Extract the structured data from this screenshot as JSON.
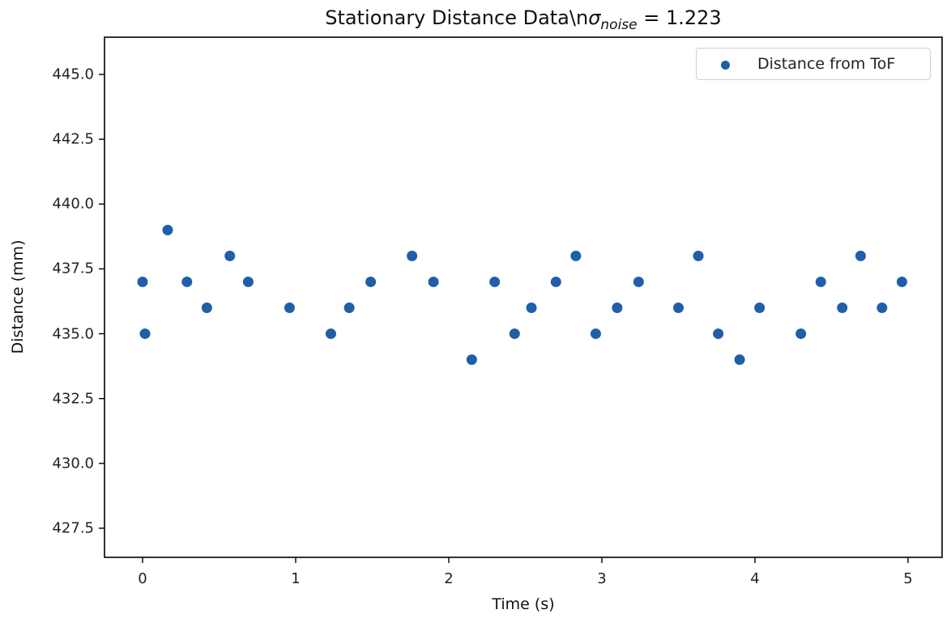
{
  "chart_data": {
    "type": "scatter",
    "title": "Stationary Distance Data\\nσ_noise = 1.223",
    "title_parts": {
      "main": "Stationary Distance Data\\n",
      "symbol": "σ",
      "subscript": "noise",
      "suffix": " = 1.223"
    },
    "xlabel": "Time (s)",
    "ylabel": "Distance (mm)",
    "xlim": [
      -0.25,
      5.22
    ],
    "ylim": [
      426.3,
      446.4
    ],
    "xticks": [
      0,
      1,
      2,
      3,
      4,
      5
    ],
    "xtick_labels": [
      "0",
      "1",
      "2",
      "3",
      "4",
      "5"
    ],
    "yticks": [
      427.5,
      430.0,
      432.5,
      435.0,
      437.5,
      440.0,
      442.5,
      445.0
    ],
    "ytick_labels": [
      "427.5",
      "430.0",
      "432.5",
      "435.0",
      "437.5",
      "440.0",
      "442.5",
      "445.0"
    ],
    "grid": false,
    "legend_position": "upper right",
    "series": [
      {
        "name": "Distance from ToF",
        "color": "#1f5fa8",
        "x": [
          0.0,
          0.016,
          0.164,
          0.29,
          0.42,
          0.57,
          0.69,
          0.96,
          1.23,
          1.35,
          1.49,
          1.76,
          1.9,
          2.15,
          2.3,
          2.43,
          2.54,
          2.7,
          2.83,
          2.96,
          3.1,
          3.24,
          3.5,
          3.63,
          3.76,
          3.9,
          4.03,
          4.3,
          4.43,
          4.57,
          4.69,
          4.83,
          4.96
        ],
        "y": [
          437,
          435,
          439,
          437,
          436,
          438,
          437,
          436,
          435,
          436,
          437,
          438,
          437,
          434,
          437,
          435,
          436,
          437,
          438,
          435,
          436,
          437,
          436,
          438,
          435,
          434,
          436,
          435,
          437,
          436,
          438,
          436,
          437
        ]
      }
    ]
  },
  "legend": {
    "label": "Distance from ToF"
  }
}
